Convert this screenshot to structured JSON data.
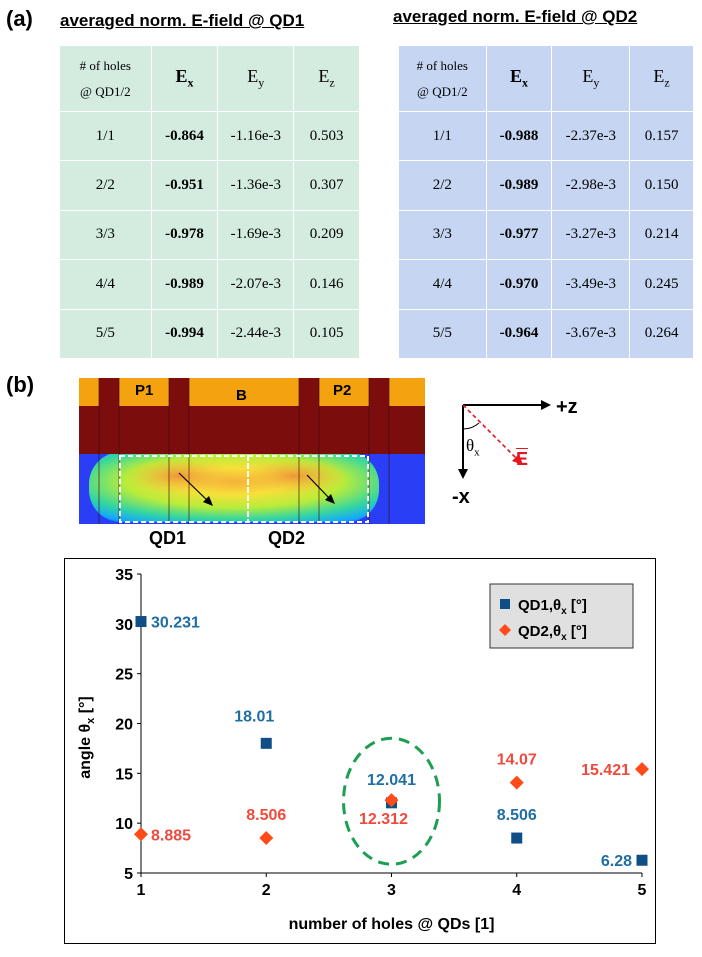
{
  "panel_a": {
    "label": "(a)",
    "table1": {
      "title": "averaged norm. E-field @ QD1",
      "header": {
        "holes_line1": "# of holes",
        "holes_line2": "@ QD1/2",
        "ex_base": "E",
        "ex_sub": "x",
        "ey_base": "E",
        "ey_sub": "y",
        "ez_base": "E",
        "ez_sub": "z"
      },
      "rows": [
        [
          "1/1",
          "-0.864",
          "-1.16e-3",
          "0.503"
        ],
        [
          "2/2",
          "-0.951",
          "-1.36e-3",
          "0.307"
        ],
        [
          "3/3",
          "-0.978",
          "-1.69e-3",
          "0.209"
        ],
        [
          "4/4",
          "-0.989",
          "-2.07e-3",
          "0.146"
        ],
        [
          "5/5",
          "-0.994",
          "-2.44e-3",
          "0.105"
        ]
      ]
    },
    "table2": {
      "title": "averaged norm. E-field @ QD2",
      "header": {
        "holes_line1": "# of holes",
        "holes_line2": "@ QD1/2",
        "ex_base": "E",
        "ex_sub": "x",
        "ey_base": "E",
        "ey_sub": "y",
        "ez_base": "E",
        "ez_sub": "z"
      },
      "rows": [
        [
          "1/1",
          "-0.988",
          "-2.37e-3",
          "0.157"
        ],
        [
          "2/2",
          "-0.989",
          "-2.98e-3",
          "0.150"
        ],
        [
          "3/3",
          "-0.977",
          "-3.27e-3",
          "0.214"
        ],
        [
          "4/4",
          "-0.970",
          "-3.49e-3",
          "0.245"
        ],
        [
          "5/5",
          "-0.964",
          "-3.67e-3",
          "0.264"
        ]
      ]
    }
  },
  "panel_b": {
    "label": "(b)",
    "device": {
      "gate_p1": "P1",
      "gate_b": "B",
      "gate_p2": "P2",
      "qd1": "QD1",
      "qd2": "QD2"
    },
    "axes": {
      "plus_z": "+z",
      "minus_x": "-x",
      "theta": "θ",
      "theta_sub": "x",
      "e_vec": "E"
    }
  },
  "chart_data": {
    "type": "scatter",
    "xlabel": "number of holes @ QDs [1]",
    "ylabel_base": "angle θ",
    "ylabel_sub": "x",
    "ylabel_tail": " [°]",
    "xlim": [
      1,
      5
    ],
    "ylim": [
      5,
      35
    ],
    "xticks": [
      "1",
      "2",
      "3",
      "4",
      "5"
    ],
    "yticks": [
      "5",
      "10",
      "15",
      "20",
      "25",
      "30",
      "35"
    ],
    "legend_position": "top-right",
    "series": [
      {
        "name": "QD1,θx [°]",
        "legend_base": "QD1,θ",
        "legend_sub": "x",
        "legend_tail": " [°]",
        "marker": "square",
        "color": "#0f4f86",
        "label_color": "#1f6ea3",
        "x": [
          1,
          2,
          3,
          4,
          5
        ],
        "y": [
          30.231,
          18.01,
          12.041,
          8.506,
          6.28
        ],
        "labels": [
          "30.231",
          "18.01",
          "12.041",
          "8.506",
          "6.28"
        ]
      },
      {
        "name": "QD2,θx [°]",
        "legend_base": "QD2,θ",
        "legend_sub": "x",
        "legend_tail": " [°]",
        "marker": "diamond",
        "color": "#ff4a1a",
        "label_color": "#f04a3e",
        "x": [
          1,
          2,
          3,
          4,
          5
        ],
        "y": [
          8.885,
          8.506,
          12.312,
          14.07,
          15.421
        ],
        "labels": [
          "8.885",
          "8.506",
          "12.312",
          "14.07",
          "15.421"
        ]
      }
    ],
    "annotation": "dashed ellipse around x=3 points",
    "annotation_color": "#1aa050"
  }
}
